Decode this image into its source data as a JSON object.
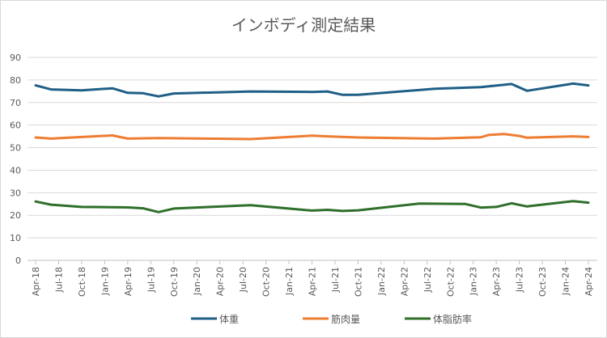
{
  "chart_data": {
    "type": "line",
    "title": "インボディ測定結果",
    "xlabel": "",
    "ylabel": "",
    "ylim": [
      0,
      90
    ],
    "yticks": [
      0,
      10,
      20,
      30,
      40,
      50,
      60,
      70,
      80,
      90
    ],
    "grid": true,
    "legend_position": "bottom",
    "xrange": [
      "2018-04",
      "2024-04"
    ],
    "xtick_labels": [
      "Apr-18",
      "Jul-18",
      "Oct-18",
      "Jan-19",
      "Apr-19",
      "Jul-19",
      "Oct-19",
      "Jan-20",
      "Apr-20",
      "Jul-20",
      "Oct-20",
      "Jan-21",
      "Apr-21",
      "Jul-21",
      "Oct-21",
      "Jan-22",
      "Apr-22",
      "Jul-22",
      "Oct-22",
      "Jan-23",
      "Apr-23",
      "Jul-23",
      "Oct-23",
      "Jan-24",
      "Apr-24"
    ],
    "series": [
      {
        "name": "体重",
        "color": "#1f5f87",
        "points": [
          [
            "2018-04",
            77.6
          ],
          [
            "2018-06",
            75.8
          ],
          [
            "2018-10",
            75.4
          ],
          [
            "2019-02",
            76.3
          ],
          [
            "2019-04",
            74.3
          ],
          [
            "2019-06",
            74.1
          ],
          [
            "2019-08",
            72.7
          ],
          [
            "2019-10",
            74.0
          ],
          [
            "2020-08",
            74.9
          ],
          [
            "2021-04",
            74.7
          ],
          [
            "2021-06",
            74.9
          ],
          [
            "2021-08",
            73.4
          ],
          [
            "2021-10",
            73.4
          ],
          [
            "2022-08",
            76.1
          ],
          [
            "2023-02",
            76.8
          ],
          [
            "2023-06",
            78.2
          ],
          [
            "2023-08",
            75.2
          ],
          [
            "2024-02",
            78.4
          ],
          [
            "2024-04",
            77.6
          ]
        ]
      },
      {
        "name": "筋肉量",
        "color": "#ed7d31",
        "points": [
          [
            "2018-04",
            54.5
          ],
          [
            "2018-06",
            54.0
          ],
          [
            "2019-02",
            55.4
          ],
          [
            "2019-04",
            54.0
          ],
          [
            "2019-08",
            54.2
          ],
          [
            "2020-08",
            53.8
          ],
          [
            "2021-04",
            55.3
          ],
          [
            "2021-06",
            55.0
          ],
          [
            "2021-10",
            54.5
          ],
          [
            "2022-08",
            54.0
          ],
          [
            "2023-02",
            54.6
          ],
          [
            "2023-03",
            55.6
          ],
          [
            "2023-05",
            56.0
          ],
          [
            "2023-07",
            55.2
          ],
          [
            "2023-08",
            54.4
          ],
          [
            "2024-02",
            55.0
          ],
          [
            "2024-04",
            54.7
          ]
        ]
      },
      {
        "name": "体脂肪率",
        "color": "#2e6f2a",
        "points": [
          [
            "2018-04",
            26.1
          ],
          [
            "2018-06",
            24.7
          ],
          [
            "2018-10",
            23.7
          ],
          [
            "2019-04",
            23.5
          ],
          [
            "2019-06",
            23.1
          ],
          [
            "2019-08",
            21.4
          ],
          [
            "2019-10",
            23.0
          ],
          [
            "2020-08",
            24.5
          ],
          [
            "2021-04",
            22.1
          ],
          [
            "2021-06",
            22.4
          ],
          [
            "2021-08",
            21.9
          ],
          [
            "2021-10",
            22.2
          ],
          [
            "2022-06",
            25.2
          ],
          [
            "2022-12",
            25.0
          ],
          [
            "2023-02",
            23.4
          ],
          [
            "2023-04",
            23.7
          ],
          [
            "2023-06",
            25.3
          ],
          [
            "2023-08",
            23.9
          ],
          [
            "2024-02",
            26.3
          ],
          [
            "2024-04",
            25.6
          ]
        ]
      }
    ]
  }
}
